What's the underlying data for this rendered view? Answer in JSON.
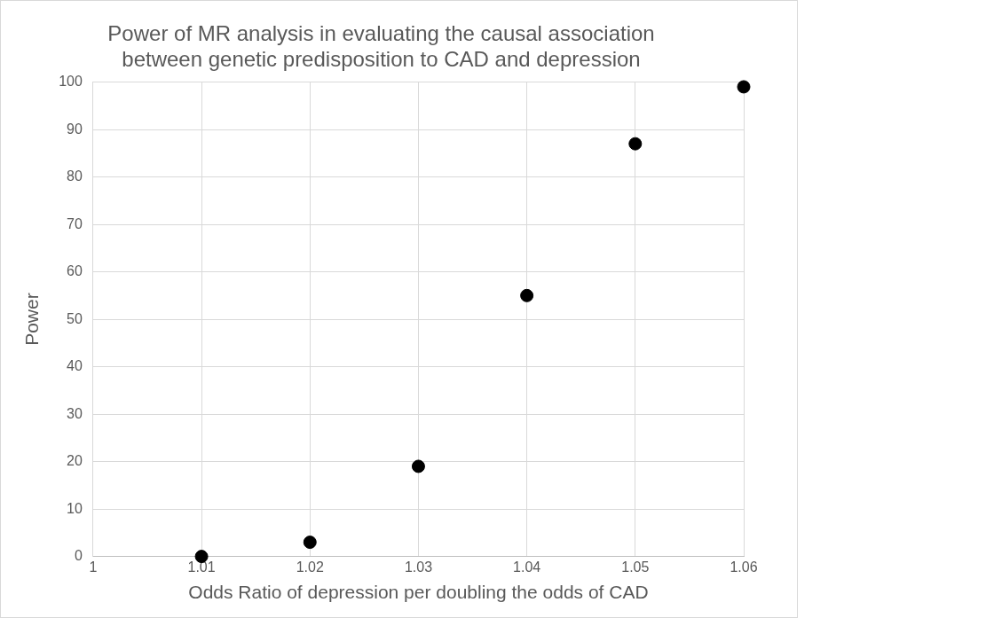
{
  "chart_data": {
    "type": "scatter",
    "title": "Power of MR analysis in evaluating the causal association between genetic predisposition to CAD and depression",
    "xlabel": "Odds Ratio of depression per doubling the odds of CAD",
    "ylabel": "Power",
    "x": [
      1.01,
      1.02,
      1.03,
      1.04,
      1.05,
      1.06
    ],
    "series": [
      {
        "color": "#000000",
        "values": [
          0,
          3,
          19,
          55,
          87,
          99
        ]
      }
    ],
    "xlim": [
      1,
      1.06
    ],
    "xticks": [
      1,
      1.01,
      1.02,
      1.03,
      1.04,
      1.05,
      1.06
    ],
    "ylim": [
      0,
      100
    ],
    "yticks": [
      0,
      10,
      20,
      30,
      40,
      50,
      60,
      70,
      80,
      90,
      100
    ],
    "grid": true,
    "legend": false,
    "marker": "circle"
  }
}
